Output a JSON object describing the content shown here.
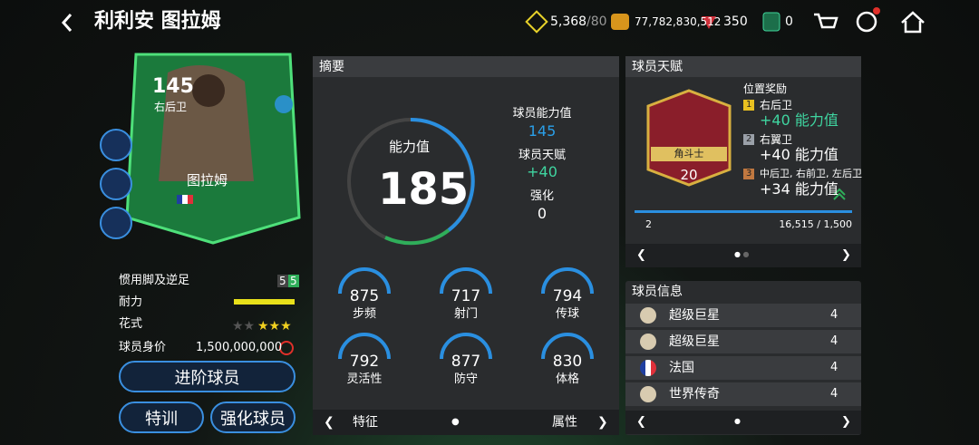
{
  "header": {
    "title": "利利安 图拉姆"
  },
  "currencies": [
    {
      "amount": "5,368",
      "cap": "/80"
    },
    {
      "amount": "77,782,830,512"
    },
    {
      "amount": "350"
    },
    {
      "amount": "0"
    }
  ],
  "card": {
    "rating": "145",
    "position": "右后卫",
    "name": "图拉姆"
  },
  "attributes": {
    "foot_label": "惯用脚及逆足",
    "weak_foot": "5",
    "skill_foot": "5",
    "stamina_label": "耐力",
    "skills_label": "花式",
    "value_label": "球员身价",
    "value": "1,500,000,000"
  },
  "buttons": {
    "upgrade": "进阶球员",
    "training": "特训",
    "enhance": "强化球员"
  },
  "summary": {
    "title": "摘要",
    "gauge_label": "能力值",
    "overall": "185",
    "player_rating_label": "球员能力值",
    "player_rating": "145",
    "talent_label": "球员天赋",
    "talent": "+40",
    "enhance_label": "强化",
    "enhance": "0",
    "stats": [
      {
        "value": "875",
        "label": "步频"
      },
      {
        "value": "717",
        "label": "射门"
      },
      {
        "value": "794",
        "label": "传球"
      },
      {
        "value": "792",
        "label": "灵活性"
      },
      {
        "value": "877",
        "label": "防守"
      },
      {
        "value": "830",
        "label": "体格"
      }
    ],
    "footer_left": "特征",
    "footer_right": "属性"
  },
  "talent": {
    "title": "球员天赋",
    "badge_name": "角斗士",
    "badge_level": "20",
    "bonus_title": "位置奖励",
    "bonuses": [
      {
        "rank": "1",
        "positions": "右后卫",
        "bonus": "+40 能力值"
      },
      {
        "rank": "2",
        "positions": "右翼卫",
        "bonus": "+40 能力值"
      },
      {
        "rank": "3",
        "positions": "中后卫, 右前卫, 左后卫",
        "bonus": "+34 能力值"
      }
    ],
    "count": "2",
    "progress": "16,515 / 1,500"
  },
  "info": {
    "title": "球员信息",
    "rows": [
      {
        "label": "超级巨星",
        "level": "4"
      },
      {
        "label": "超级巨星",
        "level": "4"
      },
      {
        "label": "法国",
        "level": "4"
      },
      {
        "label": "世界传奇",
        "level": "4"
      }
    ]
  }
}
